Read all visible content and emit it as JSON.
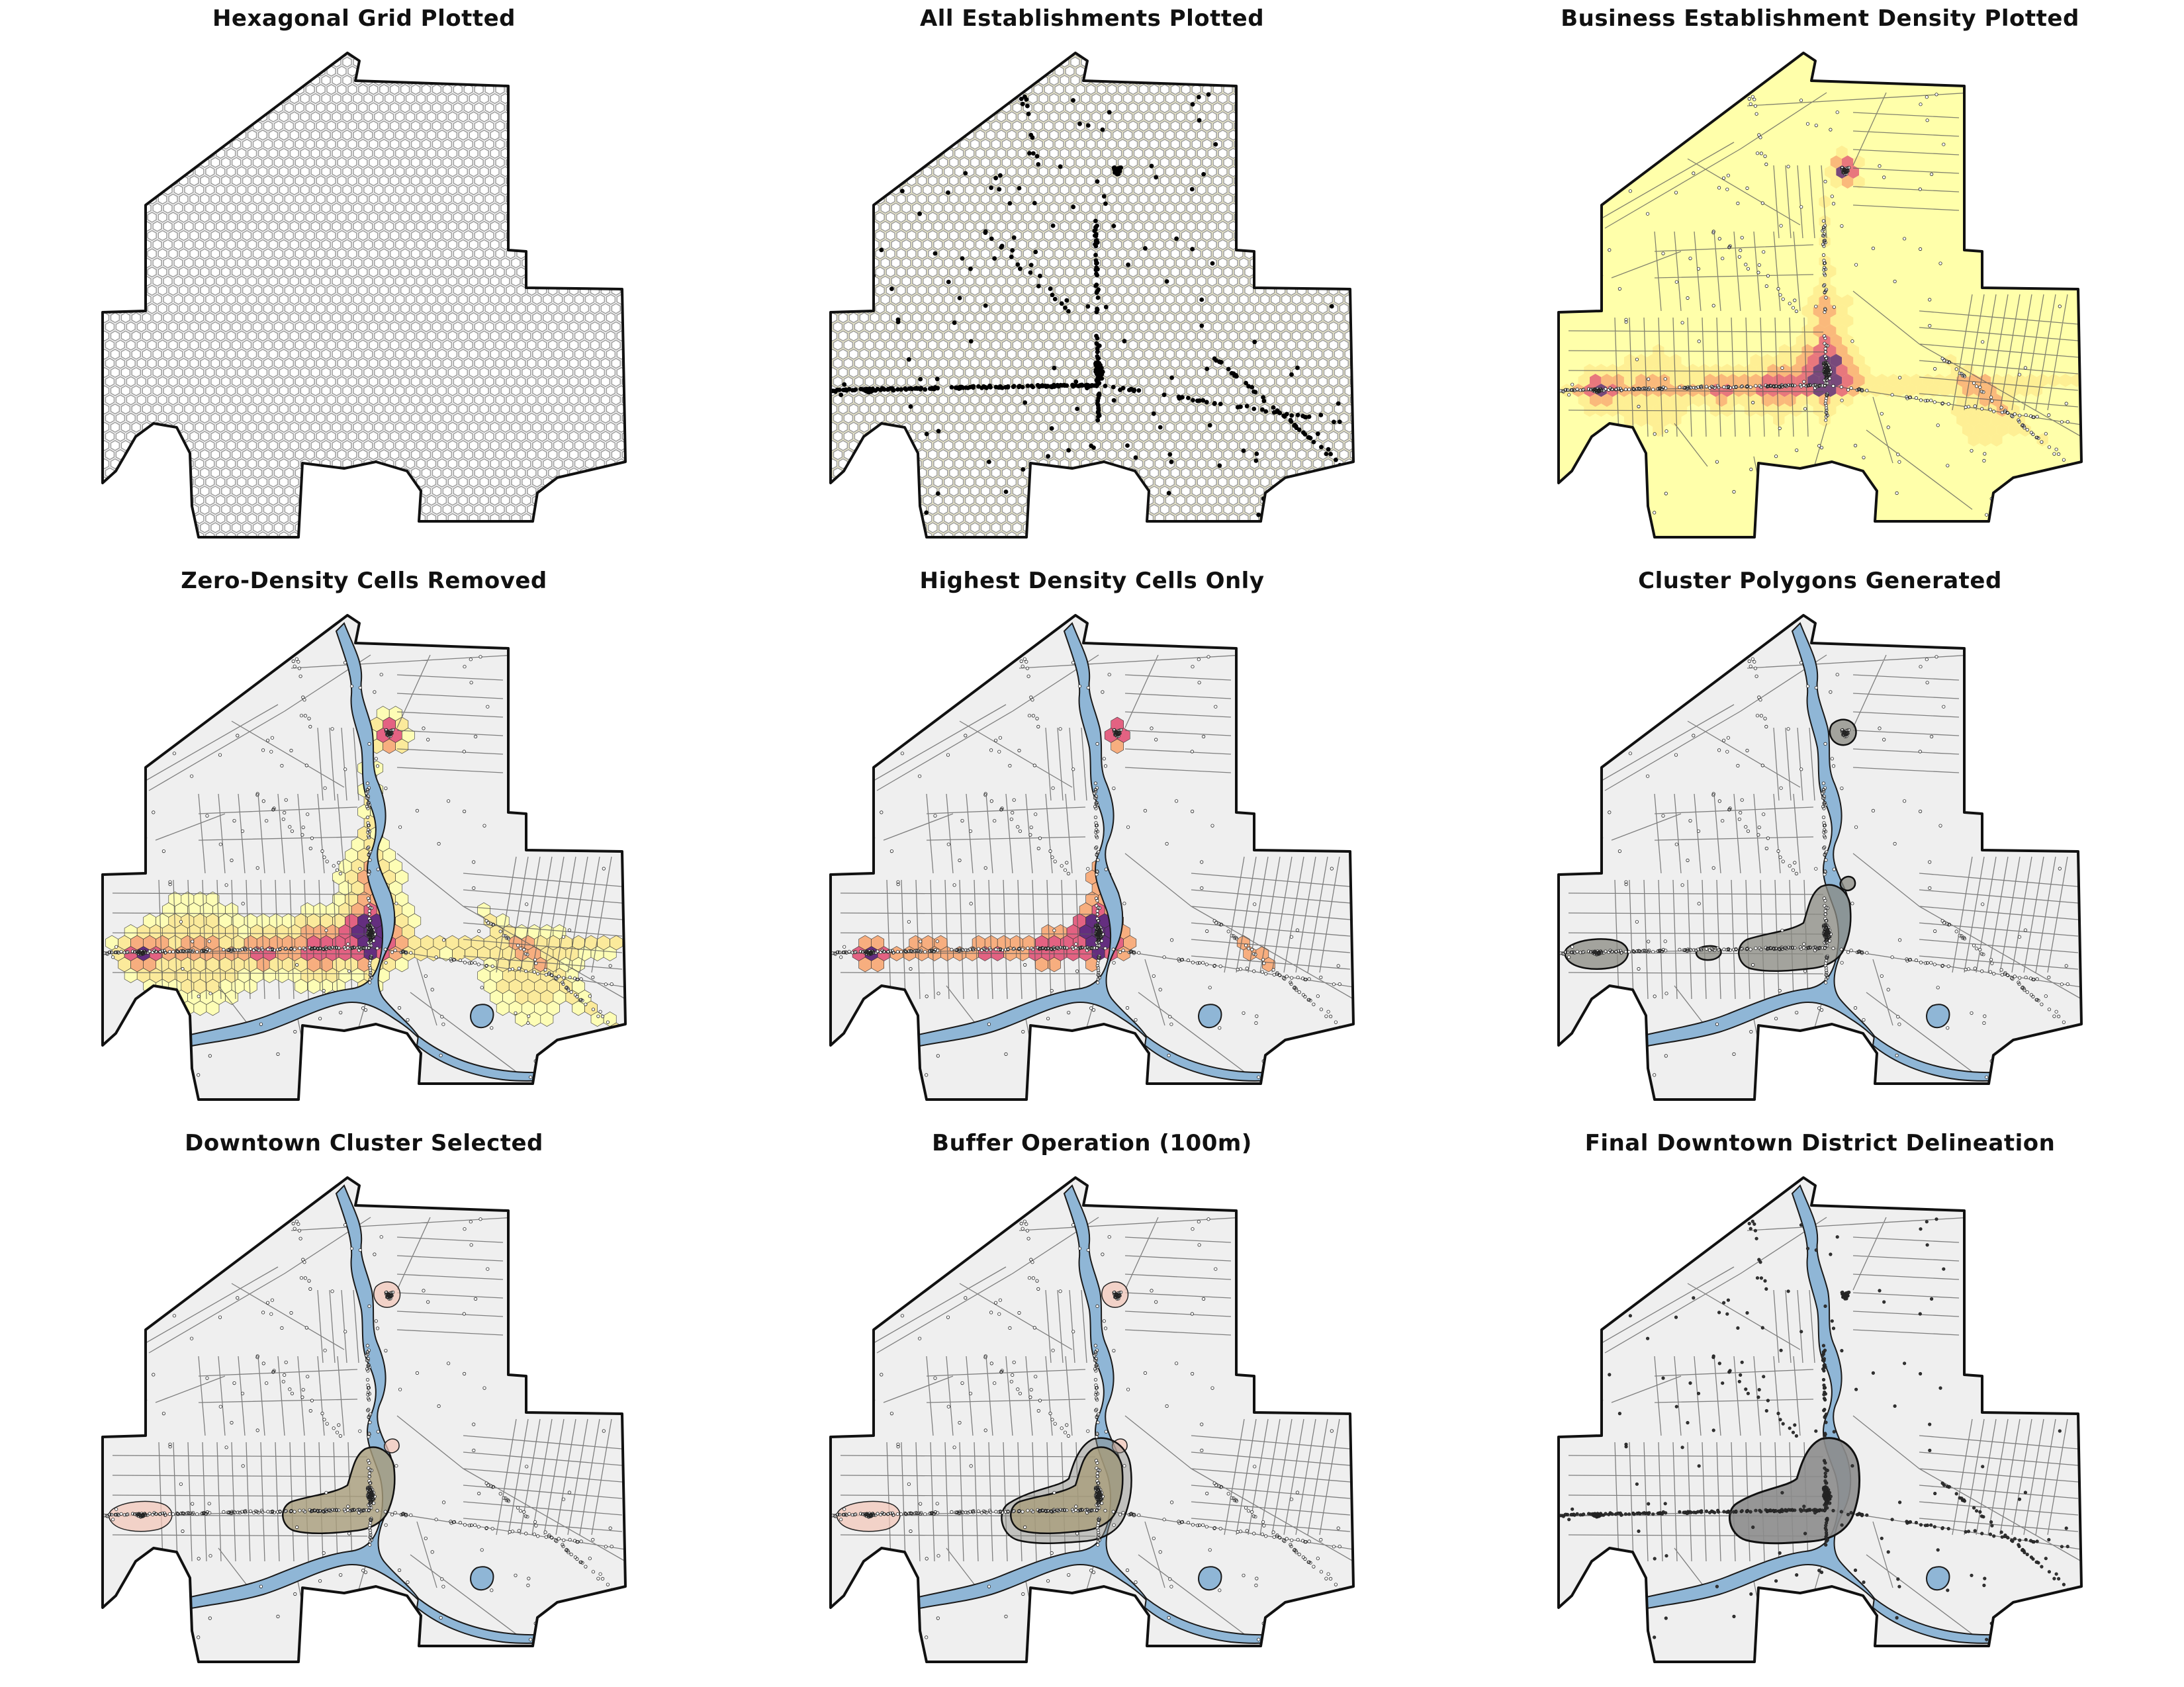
{
  "figure": {
    "panels": [
      {
        "title": "Hexagonal Grid Plotted",
        "stage": "hex-grid"
      },
      {
        "title": "All Establishments Plotted",
        "stage": "points"
      },
      {
        "title": "Business Establishment Density Plotted",
        "stage": "density-full"
      },
      {
        "title": "Zero-Density Cells Removed",
        "stage": "density-nonzero"
      },
      {
        "title": "Highest Density Cells Only",
        "stage": "density-top"
      },
      {
        "title": "Cluster Polygons Generated",
        "stage": "clusters"
      },
      {
        "title": "Downtown Cluster Selected",
        "stage": "selected"
      },
      {
        "title": "Buffer Operation (100m)",
        "stage": "buffer"
      },
      {
        "title": "Final Downtown District Delineation",
        "stage": "final"
      }
    ]
  },
  "colors": {
    "boundary": "#111111",
    "land": "#efefef",
    "hex_grid": "#a0a0a0",
    "density_base": "#ffffaa",
    "density_low": "#fde98c",
    "density_mid": "#f8a26b",
    "density_high": "#e0496e",
    "density_peak": "#4b0c6b",
    "river": "#8fb6d6",
    "river_edge": "#1a1a1a",
    "roads": "#5a5a5a",
    "cluster_fill": "#8a8a82",
    "final_fill": "#8c8c8c"
  }
}
